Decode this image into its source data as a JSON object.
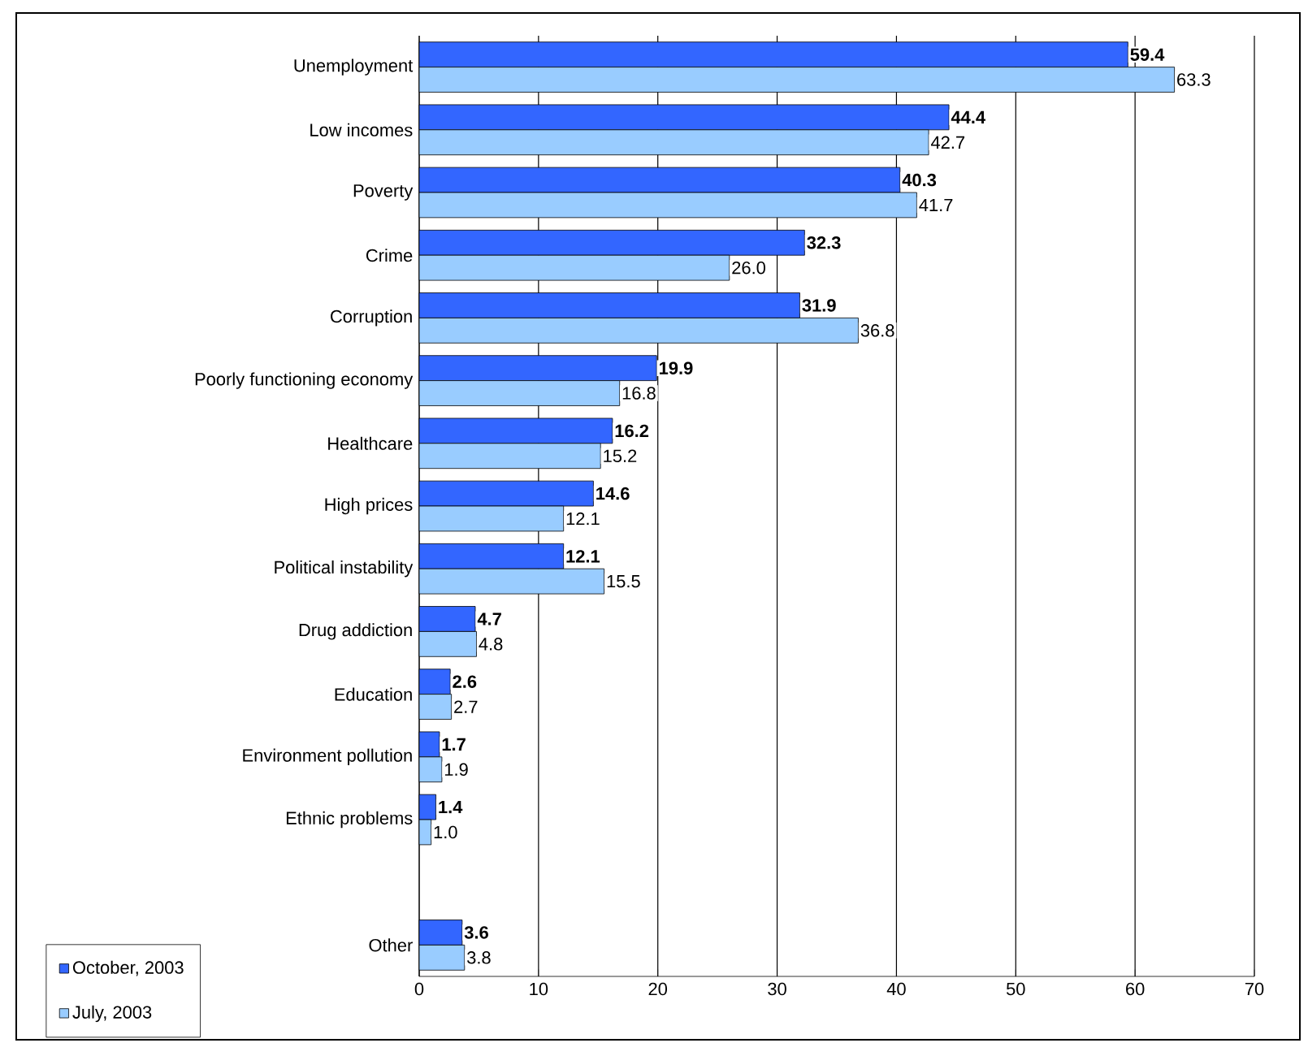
{
  "chart_data": {
    "type": "bar",
    "orientation": "horizontal",
    "categories": [
      "Unemployment",
      "Low incomes",
      "Poverty",
      "Crime",
      "Corruption",
      "Poorly functioning economy",
      "Healthcare",
      "High prices",
      "Political instability",
      "Drug addiction",
      "Education",
      "Environment pollution",
      "Ethnic problems",
      null,
      "Other"
    ],
    "series": [
      {
        "name": "October, 2003",
        "color": "#3366ff",
        "values": [
          59.4,
          44.4,
          40.3,
          32.3,
          31.9,
          19.9,
          16.2,
          14.6,
          12.1,
          4.7,
          2.6,
          1.7,
          1.4,
          null,
          3.6
        ],
        "value_labels": [
          "59.4",
          "44.4",
          "40.3",
          "32.3",
          "31.9",
          "19.9",
          "16.2",
          "14.6",
          "12.1",
          "4.7",
          "2.6",
          "1.7",
          "1.4",
          null,
          "3.6"
        ]
      },
      {
        "name": "July, 2003",
        "color": "#99ccff",
        "values": [
          63.3,
          42.7,
          41.7,
          26.0,
          36.8,
          16.8,
          15.2,
          12.1,
          15.5,
          4.8,
          2.7,
          1.9,
          1.0,
          null,
          3.8
        ],
        "value_labels": [
          "63.3",
          "42.7",
          "41.7",
          "26.0",
          "36.8",
          "16.8",
          "15.2",
          "12.1",
          "15.5",
          "4.8",
          "2.7",
          "1.9",
          "1.0",
          null,
          "3.8"
        ]
      }
    ],
    "xlim": [
      0,
      70
    ],
    "xticks": [
      0,
      10,
      20,
      30,
      40,
      50,
      60,
      70
    ],
    "grid": "x",
    "legend": "bottom left"
  }
}
